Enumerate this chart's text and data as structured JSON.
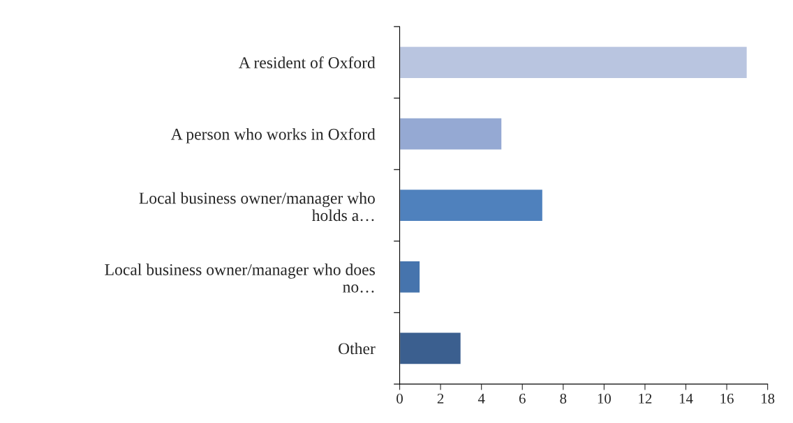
{
  "chart_data": {
    "type": "bar",
    "orientation": "horizontal",
    "categories": [
      "A resident of Oxford",
      "A person who works in Oxford",
      "Local business owner/manager who\nholds a…",
      "Local business owner/manager who does\nno…",
      "Other"
    ],
    "values": [
      17,
      5,
      7,
      1,
      3
    ],
    "colors": [
      "#b9c5e0",
      "#95a9d3",
      "#4f81bd",
      "#4674ad",
      "#3b5f8f"
    ],
    "xlim": [
      0,
      18
    ],
    "xticks": [
      0,
      2,
      4,
      6,
      8,
      10,
      12,
      14,
      16,
      18
    ],
    "grid": false,
    "legend": false
  }
}
